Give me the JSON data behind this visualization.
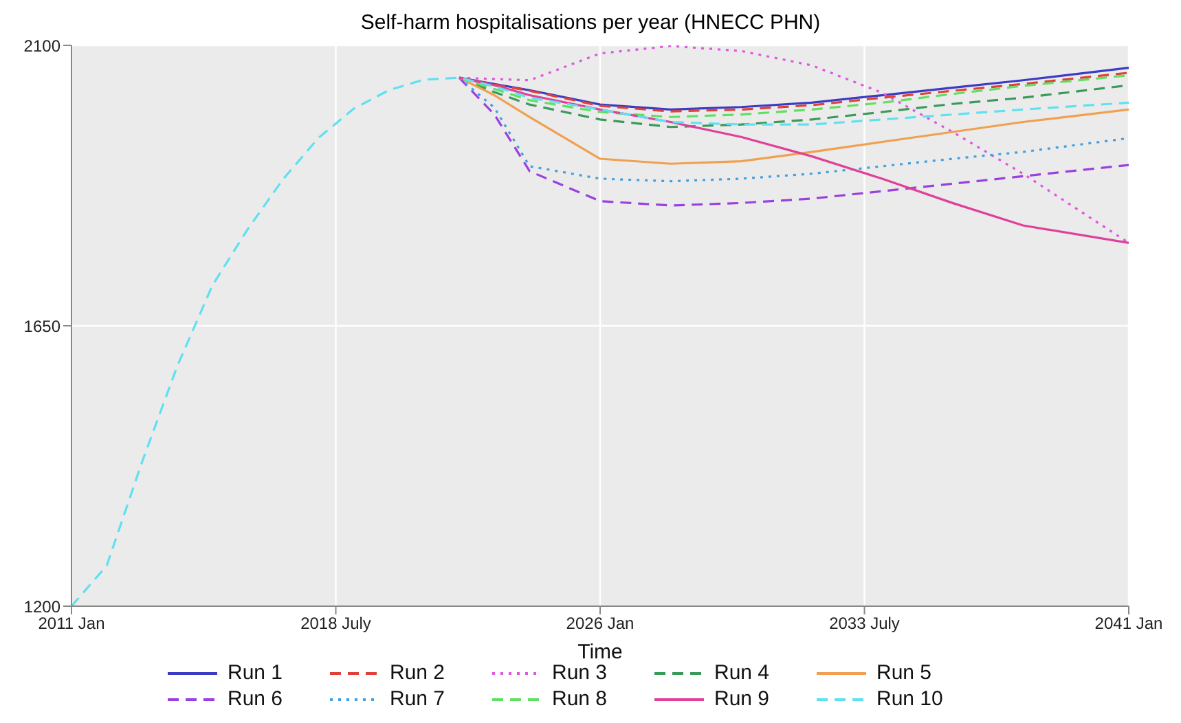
{
  "chart_data": {
    "type": "line",
    "title": "Self-harm hospitalisations per year (HNECC PHN)",
    "xlabel": "Time",
    "x": [
      "2011-01",
      "2012-01",
      "2013-01",
      "2014-01",
      "2015-01",
      "2016-01",
      "2017-01",
      "2018-01",
      "2019-01",
      "2020-01",
      "2021-01",
      "2022-01",
      "2023-01",
      "2024-01",
      "2026-01",
      "2028-01",
      "2030-01",
      "2032-01",
      "2034-01",
      "2036-01",
      "2038-01",
      "2041-01"
    ],
    "xlim": [
      "2011-01",
      "2041-01"
    ],
    "xticks": [
      {
        "value": "2011-01",
        "label": "2011 Jan"
      },
      {
        "value": "2018-07",
        "label": "2018 July"
      },
      {
        "value": "2026-01",
        "label": "2026 Jan"
      },
      {
        "value": "2033-07",
        "label": "2033 July"
      },
      {
        "value": "2041-01",
        "label": "2041 Jan"
      }
    ],
    "ylim": [
      1200,
      2100
    ],
    "yticks": [
      1200,
      1650,
      2100
    ],
    "grid": true,
    "legend": "bottom",
    "series": [
      {
        "name": "Run 1",
        "color": "#3b3bc4",
        "line_style": "solid",
        "values": [
          null,
          null,
          null,
          null,
          null,
          null,
          null,
          null,
          null,
          null,
          null,
          2048,
          2038,
          2028,
          2005,
          1997,
          2001,
          2008,
          2020,
          2032,
          2044,
          2064
        ]
      },
      {
        "name": "Run 2",
        "color": "#e0403a",
        "line_style": "dashed",
        "values": [
          null,
          null,
          null,
          null,
          null,
          null,
          null,
          null,
          null,
          null,
          null,
          2048,
          2037,
          2027,
          2003,
          1994,
          1997,
          2004,
          2016,
          2027,
          2038,
          2056
        ]
      },
      {
        "name": "Run 3",
        "color": "#e056e0",
        "line_style": "dotted",
        "values": [
          null,
          null,
          null,
          null,
          null,
          null,
          null,
          null,
          null,
          null,
          null,
          2048,
          2046,
          2044,
          2087,
          2099,
          2091,
          2068,
          2024,
          1961,
          1894,
          1783
        ]
      },
      {
        "name": "Run 4",
        "color": "#3a9a5a",
        "line_style": "dashed",
        "values": [
          null,
          null,
          null,
          null,
          null,
          null,
          null,
          null,
          null,
          null,
          null,
          2048,
          2025,
          2005,
          1981,
          1969,
          1973,
          1981,
          1993,
          2006,
          2016,
          2036
        ]
      },
      {
        "name": "Run 5",
        "color": "#f0a050",
        "line_style": "solid",
        "values": [
          null,
          null,
          null,
          null,
          null,
          null,
          null,
          null,
          null,
          null,
          null,
          2048,
          2020,
          1985,
          1918,
          1910,
          1914,
          1929,
          1945,
          1961,
          1977,
          1997
        ]
      },
      {
        "name": "Run 6",
        "color": "#9a40e0",
        "line_style": "dashed",
        "values": [
          null,
          null,
          null,
          null,
          null,
          null,
          null,
          null,
          null,
          null,
          null,
          2048,
          1989,
          1898,
          1850,
          1843,
          1847,
          1854,
          1866,
          1878,
          1890,
          1908
        ]
      },
      {
        "name": "Run 7",
        "color": "#40a0e0",
        "line_style": "dotted",
        "values": [
          null,
          null,
          null,
          null,
          null,
          null,
          null,
          null,
          null,
          null,
          null,
          2048,
          2000,
          1906,
          1886,
          1882,
          1886,
          1894,
          1906,
          1918,
          1929,
          1951
        ]
      },
      {
        "name": "Run 8",
        "color": "#60e060",
        "line_style": "dashed",
        "values": [
          null,
          null,
          null,
          null,
          null,
          null,
          null,
          null,
          null,
          null,
          null,
          2048,
          2030,
          2012,
          1993,
          1985,
          1989,
          1997,
          2008,
          2022,
          2035,
          2052
        ]
      },
      {
        "name": "Run 9",
        "color": "#e0409a",
        "line_style": "solid",
        "values": [
          null,
          null,
          null,
          null,
          null,
          null,
          null,
          null,
          null,
          null,
          null,
          2048,
          2036,
          2020,
          1997,
          1977,
          1953,
          1922,
          1886,
          1847,
          1811,
          1783
        ]
      },
      {
        "name": "Run 10",
        "color": "#60e0f0",
        "line_style": "dashed",
        "values": [
          1200,
          1265,
          1431,
          1585,
          1715,
          1805,
          1885,
          1951,
          1998,
          2028,
          2045,
          2048,
          2034,
          2016,
          1997,
          1977,
          1973,
          1973,
          1981,
          1989,
          1997,
          2008
        ]
      }
    ]
  }
}
